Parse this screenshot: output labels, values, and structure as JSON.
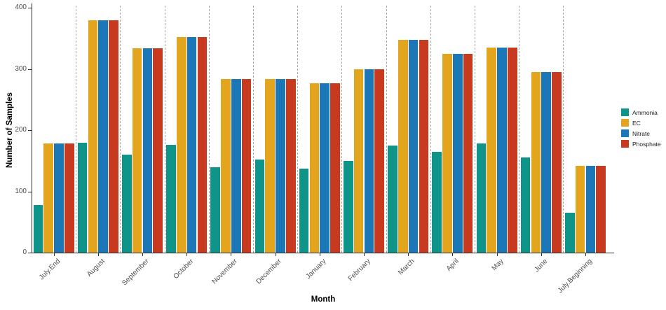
{
  "chart_data": {
    "type": "bar",
    "xlabel": "Month",
    "ylabel": "Number of Samples",
    "ylim": [
      0,
      400
    ],
    "yticks": [
      0,
      100,
      200,
      300,
      400
    ],
    "legend_position": "right",
    "grid": "vertical dashed separators between month groups",
    "categories": [
      "July.End",
      "August",
      "September",
      "October",
      "November",
      "December",
      "January",
      "February",
      "March",
      "April",
      "May",
      "June",
      "July.Beginning"
    ],
    "series": [
      {
        "name": "Ammonia",
        "color": "#0E9488",
        "values": [
          78,
          180,
          160,
          176,
          140,
          152,
          137,
          150,
          175,
          165,
          178,
          155,
          65
        ]
      },
      {
        "name": "EC",
        "color": "#E2A51D",
        "values": [
          178,
          380,
          334,
          352,
          283,
          283,
          277,
          299,
          348,
          325,
          335,
          295,
          142
        ]
      },
      {
        "name": "Nitrate",
        "color": "#1C77B6",
        "values": [
          178,
          380,
          334,
          352,
          283,
          283,
          277,
          299,
          348,
          325,
          335,
          295,
          142
        ]
      },
      {
        "name": "Phosphate",
        "color": "#C83A20",
        "values": [
          178,
          380,
          334,
          352,
          283,
          283,
          277,
          299,
          348,
          325,
          335,
          295,
          142
        ]
      }
    ]
  }
}
